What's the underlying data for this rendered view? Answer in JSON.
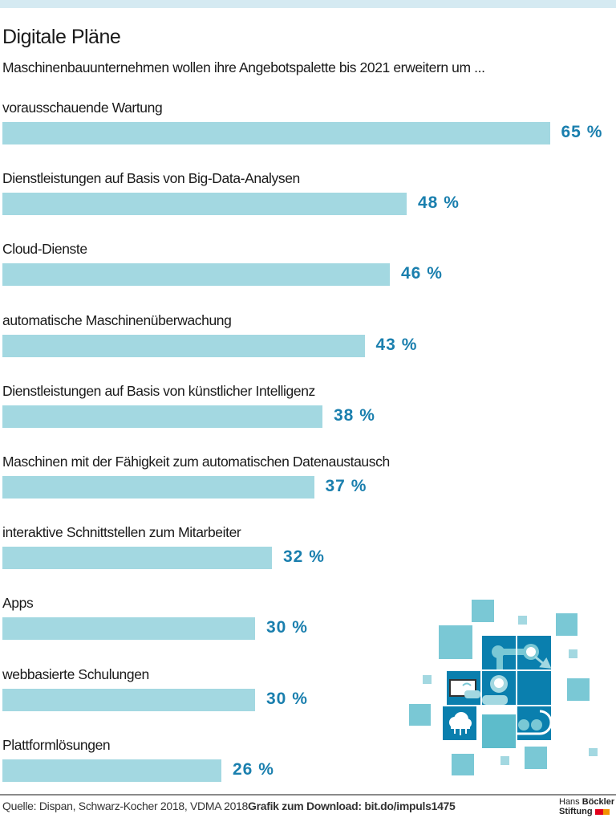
{
  "header": {
    "title": "Digitale Pläne",
    "subtitle": "Maschinenbauunternehmen wollen ihre Angebotspalette bis 2021 erweitern um ..."
  },
  "chart_data": {
    "type": "bar",
    "orientation": "horizontal",
    "title": "Digitale Pläne",
    "subtitle": "Maschinenbauunternehmen wollen ihre Angebotspalette bis 2021 erweitern um ...",
    "categories": [
      "vorausschauende Wartung",
      "Dienstleistungen auf Basis von Big-Data-Analysen",
      "Cloud-Dienste",
      "automatische Maschinenüberwachung",
      "Dienstleistungen auf Basis von künstlicher Intelligenz",
      "Maschinen mit der Fähigkeit zum automatischen Datenaustausch",
      "interaktive Schnittstellen zum Mitarbeiter",
      "Apps",
      "webbasierte Schulungen",
      "Plattformlösungen"
    ],
    "values": [
      65,
      48,
      46,
      43,
      38,
      37,
      32,
      30,
      30,
      26
    ],
    "value_labels": [
      "65 %",
      "48 %",
      "46 %",
      "43 %",
      "38 %",
      "37 %",
      "32 %",
      "30 %",
      "30 %",
      "26 %"
    ],
    "unit": "%",
    "grid": false,
    "bar_color": "#a3d8e1",
    "label_color": "#1a7fae"
  },
  "footer": {
    "source": "Quelle: Dispan, Schwarz-Kocher 2018, VDMA 2018",
    "download": "Grafik zum Download: bit.do/impuls1475",
    "logo_line1_a": "Hans",
    "logo_line1_b": "Böckler",
    "logo_line2": "Stiftung"
  }
}
